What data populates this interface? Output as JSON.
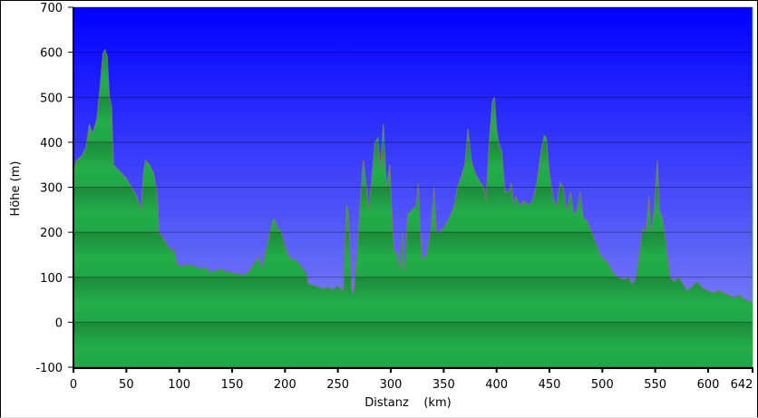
{
  "chart_data": {
    "type": "area",
    "xlabel": "Distanz    (km)",
    "ylabel": "Höhe (m)",
    "xlim": [
      0,
      642
    ],
    "ylim": [
      -100,
      700
    ],
    "xticks": [
      "0",
      "50",
      "100",
      "150",
      "200",
      "250",
      "300",
      "350",
      "400",
      "450",
      "500",
      "550",
      "600",
      "642"
    ],
    "yticks": [
      "700",
      "600",
      "500",
      "400",
      "300",
      "200",
      "100",
      "0",
      "-100"
    ],
    "grid": true,
    "colors": {
      "fill": "#22ad4a",
      "outline": "#7a7a7a",
      "sky_top": "#0000ff",
      "sky_bottom": "#8a92f2"
    },
    "x": [
      0,
      3,
      8,
      12,
      15,
      18,
      22,
      25,
      28,
      30,
      32,
      34,
      36,
      38,
      42,
      46,
      50,
      55,
      60,
      64,
      66,
      68,
      72,
      76,
      79,
      81,
      84,
      88,
      92,
      95,
      98,
      102,
      108,
      115,
      120,
      125,
      130,
      135,
      140,
      145,
      150,
      155,
      160,
      165,
      168,
      172,
      175,
      178,
      182,
      185,
      188,
      190,
      193,
      197,
      200,
      203,
      206,
      210,
      215,
      220,
      222,
      228,
      235,
      240,
      245,
      250,
      255,
      258,
      260,
      263,
      265,
      268,
      272,
      274,
      277,
      279,
      282,
      285,
      288,
      290,
      293,
      296,
      299,
      301,
      303,
      306,
      309,
      311,
      313,
      316,
      320,
      324,
      326,
      328,
      330,
      334,
      338,
      341,
      343,
      346,
      350,
      355,
      360,
      363,
      366,
      370,
      373,
      376,
      380,
      385,
      388,
      390,
      393,
      396,
      398,
      400,
      402,
      405,
      408,
      412,
      414,
      416,
      418,
      422,
      426,
      430,
      434,
      438,
      442,
      445,
      447,
      450,
      454,
      457,
      460,
      463,
      466,
      470,
      473,
      476,
      479,
      482,
      485,
      490,
      495,
      498,
      502,
      506,
      510,
      515,
      520,
      525,
      528,
      532,
      535,
      538,
      541,
      544,
      546,
      549,
      552,
      554,
      557,
      560,
      564,
      568,
      572,
      575,
      580,
      585,
      590,
      595,
      600,
      605,
      610,
      615,
      620,
      625,
      630,
      635,
      642
    ],
    "y": [
      340,
      360,
      370,
      390,
      440,
      420,
      450,
      520,
      600,
      605,
      590,
      500,
      480,
      350,
      340,
      330,
      320,
      300,
      280,
      250,
      330,
      360,
      350,
      330,
      290,
      200,
      190,
      175,
      160,
      165,
      130,
      125,
      128,
      125,
      118,
      122,
      110,
      115,
      118,
      112,
      110,
      108,
      105,
      110,
      120,
      135,
      145,
      120,
      160,
      190,
      225,
      230,
      210,
      200,
      170,
      150,
      140,
      140,
      125,
      110,
      85,
      82,
      75,
      78,
      72,
      80,
      70,
      260,
      250,
      70,
      65,
      150,
      300,
      360,
      300,
      250,
      320,
      400,
      410,
      340,
      440,
      300,
      350,
      250,
      160,
      150,
      120,
      200,
      110,
      240,
      250,
      260,
      310,
      200,
      140,
      150,
      210,
      300,
      200,
      200,
      210,
      230,
      260,
      300,
      320,
      350,
      430,
      360,
      330,
      310,
      300,
      270,
      400,
      490,
      500,
      430,
      400,
      380,
      290,
      290,
      310,
      260,
      280,
      260,
      270,
      260,
      270,
      310,
      380,
      415,
      410,
      330,
      270,
      260,
      310,
      300,
      250,
      290,
      240,
      250,
      290,
      230,
      230,
      200,
      170,
      150,
      140,
      130,
      110,
      100,
      95,
      100,
      85,
      100,
      150,
      210,
      200,
      280,
      200,
      250,
      360,
      250,
      230,
      180,
      100,
      90,
      100,
      90,
      70,
      80,
      90,
      75,
      70,
      65,
      70,
      65,
      60,
      55,
      60,
      50,
      45
    ]
  }
}
